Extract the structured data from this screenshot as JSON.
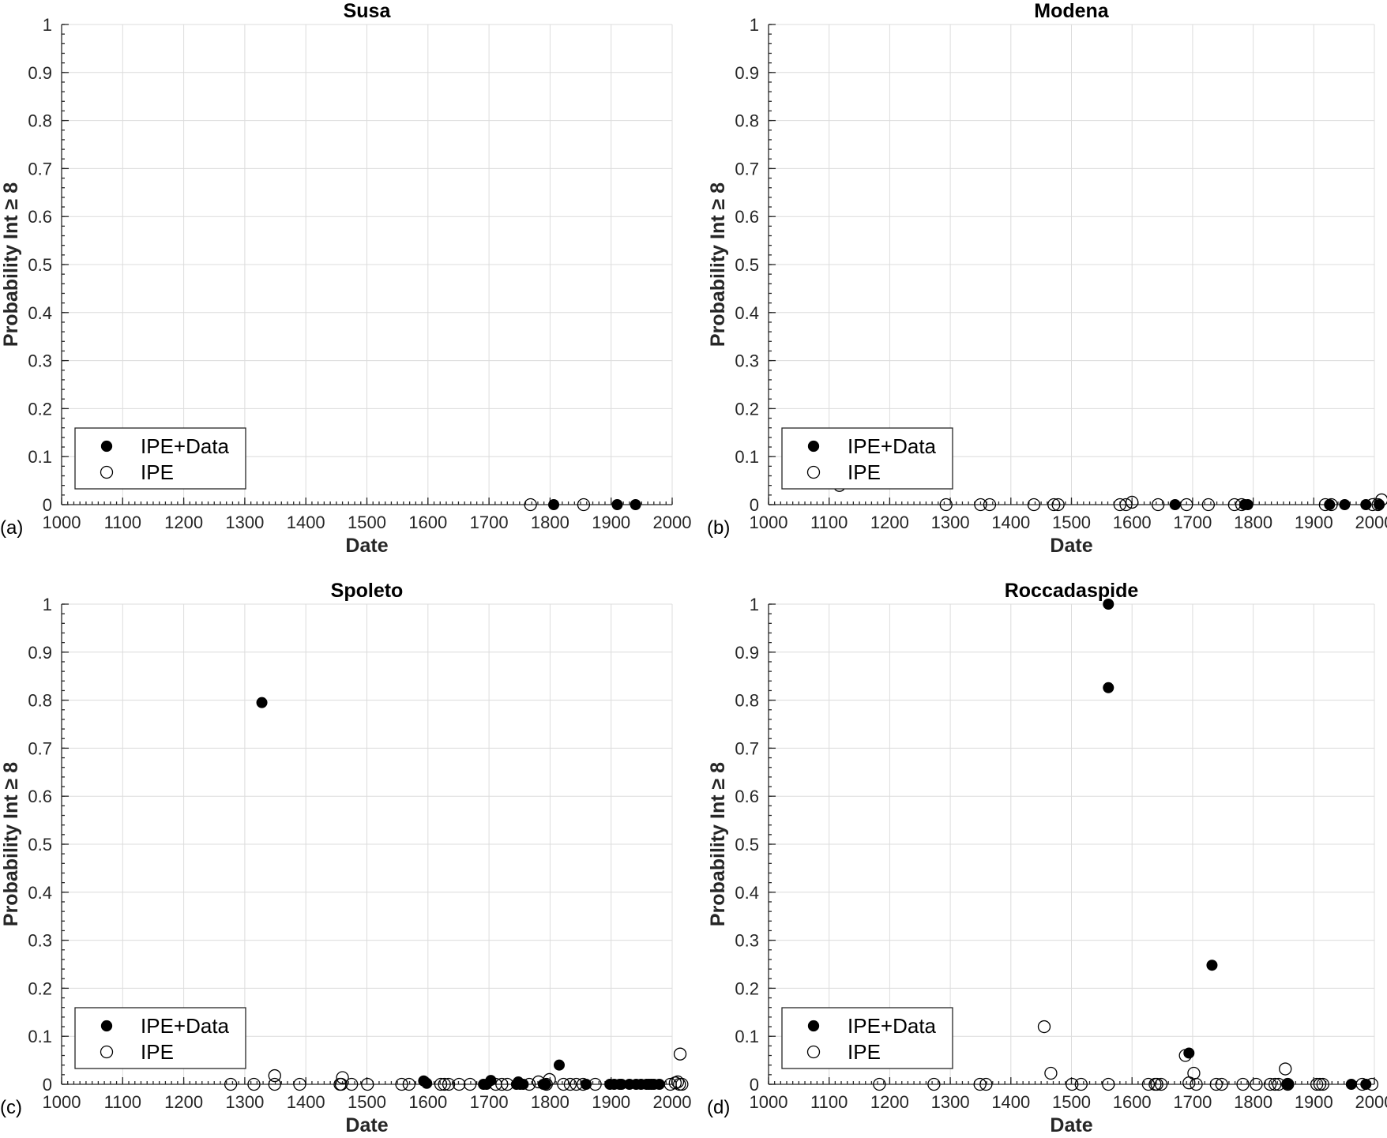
{
  "chart_data": [
    {
      "type": "scatter",
      "panel": "(a)",
      "title": "Susa",
      "xlabel": "Date",
      "ylabel": "Probability Int ≥ 8",
      "xlim": [
        1000,
        2000
      ],
      "ylim": [
        0,
        1
      ],
      "xticks": [
        1000,
        1100,
        1200,
        1300,
        1400,
        1500,
        1600,
        1700,
        1800,
        1900,
        2000
      ],
      "yticks": [
        0,
        0.1,
        0.2,
        0.3,
        0.4,
        0.5,
        0.6,
        0.7,
        0.8,
        0.9,
        1
      ],
      "grid": true,
      "legend": {
        "position": "bottom-left",
        "entries": [
          "IPE+Data",
          "IPE"
        ]
      },
      "series": [
        {
          "name": "IPE+Data",
          "marker": "filled",
          "points": [
            [
              1806,
              0
            ],
            [
              1910,
              0
            ],
            [
              1940,
              0
            ]
          ]
        },
        {
          "name": "IPE",
          "marker": "open",
          "points": [
            [
              1768,
              0
            ],
            [
              1855,
              0
            ]
          ]
        }
      ]
    },
    {
      "type": "scatter",
      "panel": "(b)",
      "title": "Modena",
      "xlabel": "Date",
      "ylabel": "Probability Int ≥ 8",
      "xlim": [
        1000,
        2000
      ],
      "ylim": [
        0,
        1
      ],
      "xticks": [
        1000,
        1100,
        1200,
        1300,
        1400,
        1500,
        1600,
        1700,
        1800,
        1900,
        2000
      ],
      "yticks": [
        0,
        0.1,
        0.2,
        0.3,
        0.4,
        0.5,
        0.6,
        0.7,
        0.8,
        0.9,
        1
      ],
      "grid": true,
      "legend": {
        "position": "bottom-left",
        "entries": [
          "IPE+Data",
          "IPE"
        ]
      },
      "series": [
        {
          "name": "IPE+Data",
          "marker": "filled",
          "points": [
            [
              1671,
              0
            ],
            [
              1786,
              0
            ],
            [
              1791,
              0
            ],
            [
              1926,
              0
            ],
            [
              1951,
              0
            ],
            [
              1986,
              0
            ],
            [
              2008,
              0
            ]
          ]
        },
        {
          "name": "IPE",
          "marker": "open",
          "points": [
            [
              1117,
              0.04
            ],
            [
              1293,
              0
            ],
            [
              1350,
              0
            ],
            [
              1365,
              0
            ],
            [
              1438,
              0
            ],
            [
              1471,
              0
            ],
            [
              1478,
              0
            ],
            [
              1580,
              0
            ],
            [
              1590,
              0
            ],
            [
              1600,
              0.005
            ],
            [
              1643,
              0
            ],
            [
              1690,
              0
            ],
            [
              1726,
              0
            ],
            [
              1769,
              0
            ],
            [
              1781,
              0
            ],
            [
              1919,
              0
            ],
            [
              1929,
              0
            ],
            [
              1997,
              0
            ],
            [
              2006,
              0
            ],
            [
              2012,
              0.01
            ]
          ]
        }
      ]
    },
    {
      "type": "scatter",
      "panel": "(c)",
      "title": "Spoleto",
      "xlabel": "Date",
      "ylabel": "Probability Int ≥ 8",
      "xlim": [
        1000,
        2000
      ],
      "ylim": [
        0,
        1
      ],
      "xticks": [
        1000,
        1100,
        1200,
        1300,
        1400,
        1500,
        1600,
        1700,
        1800,
        1900,
        2000
      ],
      "yticks": [
        0,
        0.1,
        0.2,
        0.3,
        0.4,
        0.5,
        0.6,
        0.7,
        0.8,
        0.9,
        1
      ],
      "grid": true,
      "legend": {
        "position": "bottom-left",
        "entries": [
          "IPE+Data",
          "IPE"
        ]
      },
      "series": [
        {
          "name": "IPE+Data",
          "marker": "filled",
          "points": [
            [
              1328,
              0.795
            ],
            [
              1593,
              0.007
            ],
            [
              1598,
              0.002
            ],
            [
              1691,
              0
            ],
            [
              1696,
              0
            ],
            [
              1703,
              0.008
            ],
            [
              1745,
              0
            ],
            [
              1748,
              0.005
            ],
            [
              1751,
              0
            ],
            [
              1756,
              0
            ],
            [
              1789,
              0
            ],
            [
              1793,
              0
            ],
            [
              1815,
              0.04
            ],
            [
              1859,
              0
            ],
            [
              1898,
              0
            ],
            [
              1905,
              0
            ],
            [
              1914,
              0
            ],
            [
              1917,
              0
            ],
            [
              1930,
              0
            ],
            [
              1941,
              0
            ],
            [
              1949,
              0
            ],
            [
              1958,
              0
            ],
            [
              1962,
              0
            ],
            [
              1966,
              0
            ],
            [
              1970,
              0
            ],
            [
              1979,
              0
            ]
          ]
        },
        {
          "name": "IPE",
          "marker": "open",
          "points": [
            [
              1277,
              0
            ],
            [
              1315,
              0
            ],
            [
              1349,
              0
            ],
            [
              1349,
              0.018
            ],
            [
              1390,
              0
            ],
            [
              1456,
              0
            ],
            [
              1458,
              0
            ],
            [
              1460,
              0.014
            ],
            [
              1475,
              0
            ],
            [
              1501,
              0
            ],
            [
              1557,
              0
            ],
            [
              1569,
              0
            ],
            [
              1621,
              0
            ],
            [
              1627,
              0
            ],
            [
              1634,
              0
            ],
            [
              1651,
              0
            ],
            [
              1669,
              0
            ],
            [
              1711,
              0
            ],
            [
              1721,
              0
            ],
            [
              1730,
              0
            ],
            [
              1766,
              0
            ],
            [
              1781,
              0.005
            ],
            [
              1794,
              0
            ],
            [
              1799,
              0.01
            ],
            [
              1822,
              0
            ],
            [
              1833,
              0
            ],
            [
              1843,
              0
            ],
            [
              1854,
              0
            ],
            [
              1874,
              0
            ],
            [
              1997,
              0
            ],
            [
              2005,
              0.003
            ],
            [
              2009,
              0.005
            ],
            [
              2012,
              0
            ],
            [
              2013,
              0.063
            ],
            [
              2016,
              0
            ]
          ]
        }
      ]
    },
    {
      "type": "scatter",
      "panel": "(d)",
      "title": "Roccadaspide",
      "xlabel": "Date",
      "ylabel": "Probability Int ≥ 8",
      "xlim": [
        1000,
        2000
      ],
      "ylim": [
        0,
        1
      ],
      "xticks": [
        1000,
        1100,
        1200,
        1300,
        1400,
        1500,
        1600,
        1700,
        1800,
        1900,
        2000
      ],
      "yticks": [
        0,
        0.1,
        0.2,
        0.3,
        0.4,
        0.5,
        0.6,
        0.7,
        0.8,
        0.9,
        1
      ],
      "grid": true,
      "legend": {
        "position": "bottom-left",
        "entries": [
          "IPE+Data",
          "IPE"
        ]
      },
      "series": [
        {
          "name": "IPE+Data",
          "marker": "filled",
          "points": [
            [
              1561,
              1.0
            ],
            [
              1561,
              0.826
            ],
            [
              1694,
              0.065
            ],
            [
              1732,
              0.248
            ],
            [
              1857,
              0
            ],
            [
              1962,
              0
            ],
            [
              1986,
              0
            ]
          ]
        },
        {
          "name": "IPE",
          "marker": "open",
          "points": [
            [
              1183,
              0
            ],
            [
              1273,
              0
            ],
            [
              1349,
              0
            ],
            [
              1359,
              0
            ],
            [
              1455,
              0.12
            ],
            [
              1466,
              0.023
            ],
            [
              1501,
              0
            ],
            [
              1516,
              0
            ],
            [
              1561,
              0
            ],
            [
              1627,
              0
            ],
            [
              1638,
              0
            ],
            [
              1641,
              0
            ],
            [
              1648,
              0
            ],
            [
              1688,
              0.06
            ],
            [
              1694,
              0.003
            ],
            [
              1702,
              0.023
            ],
            [
              1706,
              0
            ],
            [
              1739,
              0
            ],
            [
              1748,
              0
            ],
            [
              1783,
              0
            ],
            [
              1805,
              0
            ],
            [
              1828,
              0
            ],
            [
              1836,
              0
            ],
            [
              1842,
              0
            ],
            [
              1853,
              0.032
            ],
            [
              1857,
              0
            ],
            [
              1905,
              0
            ],
            [
              1910,
              0
            ],
            [
              1915,
              0
            ],
            [
              1980,
              0
            ],
            [
              1996,
              0
            ]
          ]
        }
      ]
    }
  ]
}
